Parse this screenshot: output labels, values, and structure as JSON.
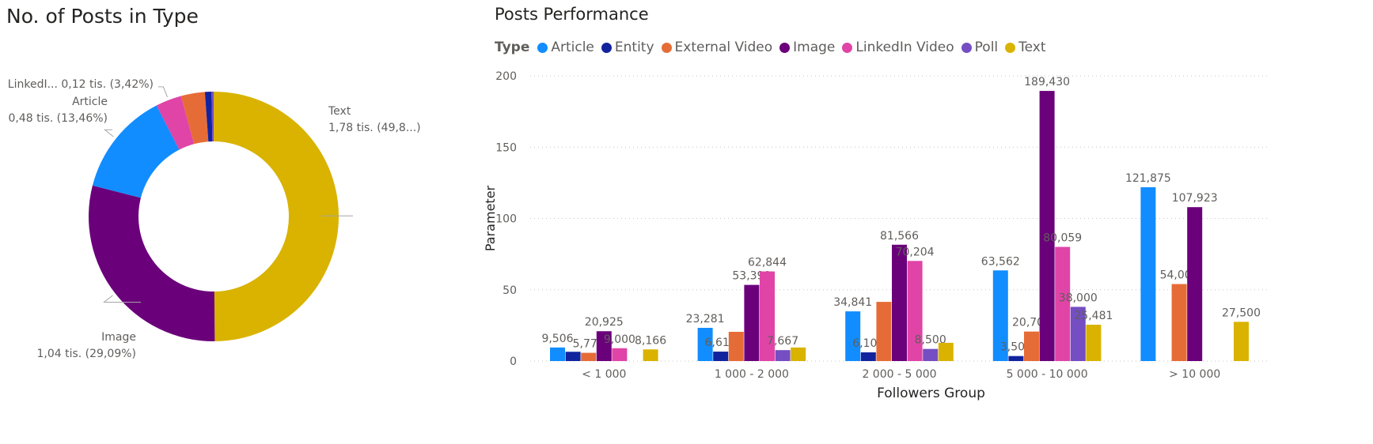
{
  "colors": {
    "Article": "#118dff",
    "Entity": "#12239e",
    "External Video": "#e66c37",
    "Image": "#6b007b",
    "LinkedIn Video": "#e044a7",
    "Poll": "#744ec2",
    "Text": "#d9b300"
  },
  "chart_data": [
    {
      "type": "pie",
      "title": "No. of Posts in Type",
      "slices": [
        {
          "label": "Text",
          "value": 1.78,
          "share": 49.8,
          "display_label": "Text",
          "display_value": "1,78 tis. (49,8...)"
        },
        {
          "label": "Image",
          "value": 1.04,
          "share": 29.09,
          "display_label": "Image",
          "display_value": "1,04 tis. (29,09%)"
        },
        {
          "label": "Article",
          "value": 0.48,
          "share": 13.46,
          "display_label": "Article",
          "display_value": "0,48 tis. (13,46%)"
        },
        {
          "label": "LinkedIn Video",
          "value": 0.12,
          "share": 3.42,
          "display_label": "LinkedI...",
          "display_value": "0,12 tis. (3,42%)"
        },
        {
          "label": "External Video",
          "value": 0.11,
          "share": 3.0
        },
        {
          "label": "Entity",
          "value": 0.03,
          "share": 0.85
        },
        {
          "label": "Poll",
          "value": 0.01,
          "share": 0.38
        }
      ]
    },
    {
      "type": "bar",
      "title": "Posts Performance",
      "legend_title": "Type",
      "legend_position": "top-left",
      "xlabel": "Followers Group",
      "ylabel": "Parameter",
      "ylim": [
        0,
        200
      ],
      "yticks": [
        0,
        50,
        100,
        150,
        200
      ],
      "grid": true,
      "categories": [
        "< 1 000",
        "1 000 - 2 000",
        "2 000 - 5 000",
        "5 000 - 10 000",
        "> 10 000"
      ],
      "series": [
        {
          "name": "Article",
          "values": [
            9.506,
            23.281,
            34.841,
            63.562,
            121.875
          ],
          "labels": [
            "9,506",
            "23,281",
            "34,841",
            "63,562",
            "121,875"
          ]
        },
        {
          "name": "Entity",
          "values": [
            6.5,
            6.611,
            6.1,
            3.5,
            null
          ],
          "labels": [
            "",
            "6,611",
            "6,100",
            "3,500",
            ""
          ]
        },
        {
          "name": "External Video",
          "values": [
            5.773,
            20.5,
            41.5,
            20.7,
            54.0
          ],
          "labels": [
            "5,773",
            "",
            "",
            "20,700",
            "54,000"
          ]
        },
        {
          "name": "Image",
          "values": [
            20.925,
            53.399,
            81.566,
            189.43,
            107.923
          ],
          "labels": [
            "20,925",
            "53,399",
            "81,566",
            "189,430",
            "107,923"
          ]
        },
        {
          "name": "LinkedIn Video",
          "values": [
            9.0,
            62.844,
            70.204,
            80.059,
            null
          ],
          "labels": [
            "9,000",
            "62,844",
            "70,204",
            "80,059",
            ""
          ]
        },
        {
          "name": "Poll",
          "values": [
            null,
            7.667,
            8.5,
            38.0,
            null
          ],
          "labels": [
            "",
            "7,667",
            "8,500",
            "38,000",
            ""
          ]
        },
        {
          "name": "Text",
          "values": [
            8.166,
            9.5,
            12.8,
            25.481,
            27.5
          ],
          "labels": [
            "8,166",
            "",
            "",
            "25,481",
            "27,500"
          ]
        }
      ]
    }
  ]
}
